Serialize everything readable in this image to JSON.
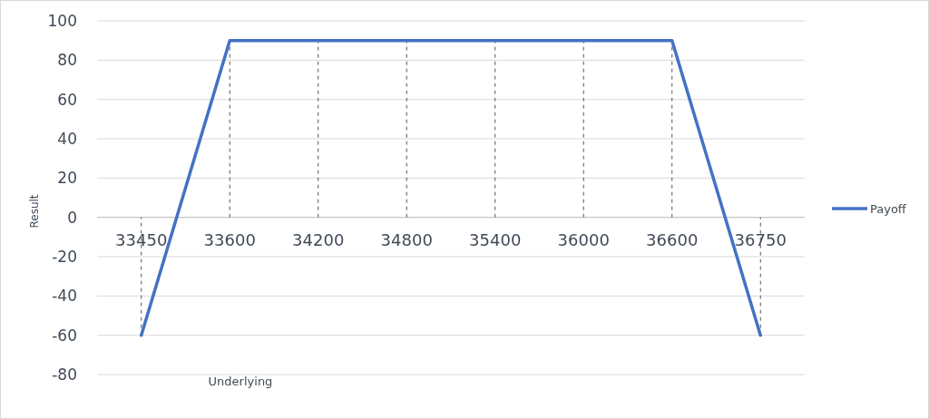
{
  "chart_data": {
    "type": "line",
    "xlabel": "Underlying",
    "ylabel": "Result",
    "categories": [
      "33450",
      "33600",
      "34200",
      "34800",
      "35400",
      "36000",
      "36600",
      "36750"
    ],
    "series": [
      {
        "name": "Payoff",
        "color": "#4472c4",
        "values": [
          -60,
          90,
          90,
          90,
          90,
          90,
          90,
          -60
        ],
        "errors": [
          [
            -60,
            0
          ],
          [
            0,
            90
          ],
          [
            0,
            90
          ],
          [
            0,
            90
          ],
          [
            0,
            90
          ],
          [
            0,
            90
          ],
          [
            0,
            90
          ],
          [
            -60,
            0
          ]
        ]
      }
    ],
    "ylim": [
      -80,
      100
    ],
    "yticks": [
      -80,
      -60,
      -40,
      -20,
      0,
      20,
      40,
      60,
      80,
      100
    ],
    "grid": "y",
    "legend": "right",
    "marker": "none",
    "line_style": "solid"
  }
}
